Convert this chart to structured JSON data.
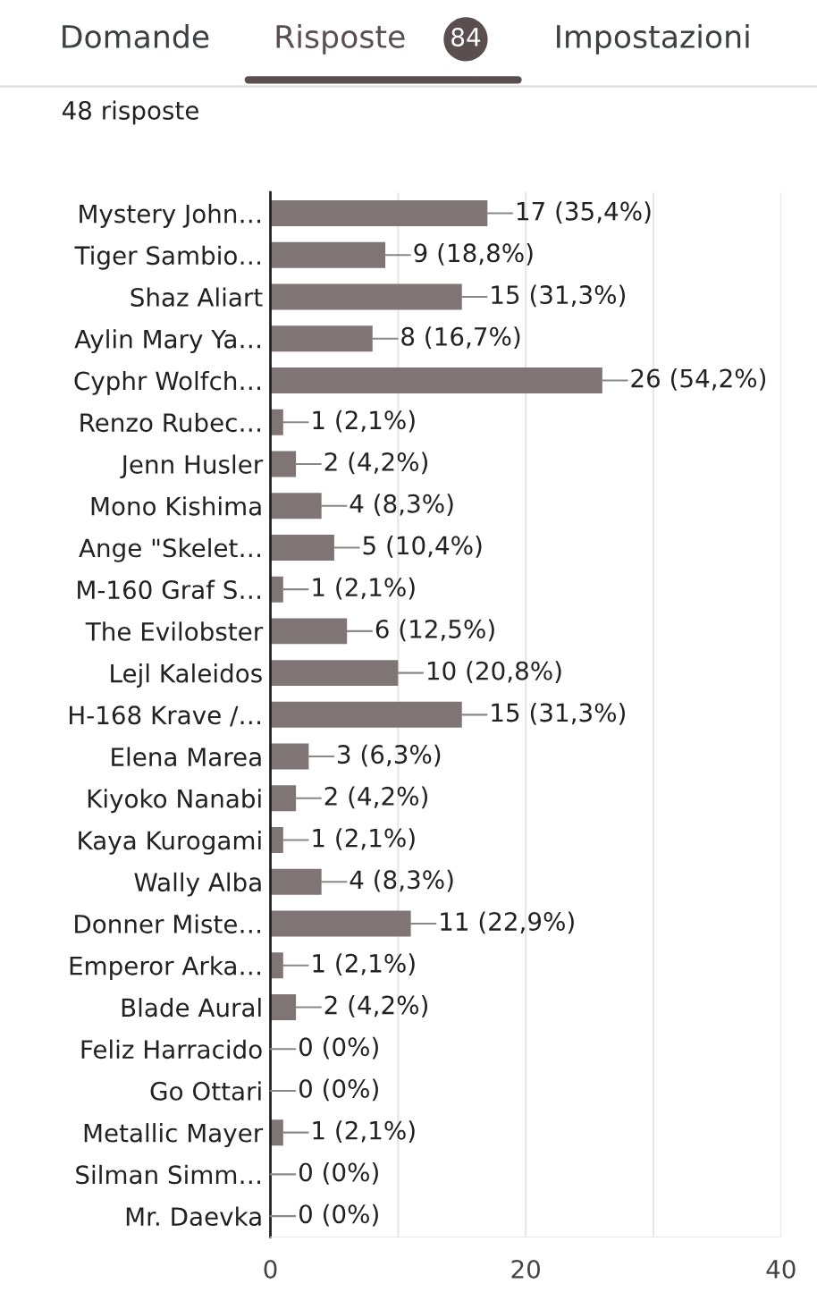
{
  "chart_data": {
    "type": "bar",
    "orientation": "horizontal",
    "title": "48 risposte",
    "annotations": [
      "Domande",
      "Risposte",
      "84",
      "Impostazioni"
    ],
    "categories": [
      "Mystery John…",
      "Tiger Sambio…",
      "Shaz Aliart",
      "Aylin Mary Ya…",
      "Cyphr Wolfch…",
      "Renzo Rubec…",
      "Jenn Husler",
      "Mono Kishima",
      "Ange \"Skelet…",
      "M-160 Graf S…",
      "The Evilobster",
      "Lejl Kaleidos",
      "H-168 Krave /…",
      "Elena Marea",
      "Kiyoko Nanabi",
      "Kaya Kurogami",
      "Wally Alba",
      "Donner Miste…",
      "Emperor Arka…",
      "Blade Aural",
      "Feliz Harracido",
      "Go Ottari",
      "Metallic Mayer",
      "Silman Simm…",
      "Mr. Daevka"
    ],
    "values": [
      17,
      9,
      15,
      8,
      26,
      1,
      2,
      4,
      5,
      1,
      6,
      10,
      15,
      3,
      2,
      1,
      4,
      11,
      1,
      2,
      0,
      0,
      1,
      0,
      0
    ],
    "value_labels": [
      "17 (35,4%)",
      "9 (18,8%)",
      "15 (31,3%)",
      "8 (16,7%)",
      "26 (54,2%)",
      "1 (2,1%)",
      "2 (4,2%)",
      "4 (8,3%)",
      "5 (10,4%)",
      "1 (2,1%)",
      "6 (12,5%)",
      "10 (20,8%)",
      "15 (31,3%)",
      "3 (6,3%)",
      "2 (4,2%)",
      "1 (2,1%)",
      "4 (8,3%)",
      "11 (22,9%)",
      "1 (2,1%)",
      "2 (4,2%)",
      "0 (0%)",
      "0 (0%)",
      "1 (2,1%)",
      "0 (0%)",
      "0 (0%)"
    ],
    "color": "#7f7574",
    "xlim": [
      0,
      40
    ],
    "xticks": [
      0,
      {
        "value": 10,
        "label": null
      },
      20,
      {
        "value": 30,
        "label": null
      },
      40
    ],
    "grid": "x"
  }
}
